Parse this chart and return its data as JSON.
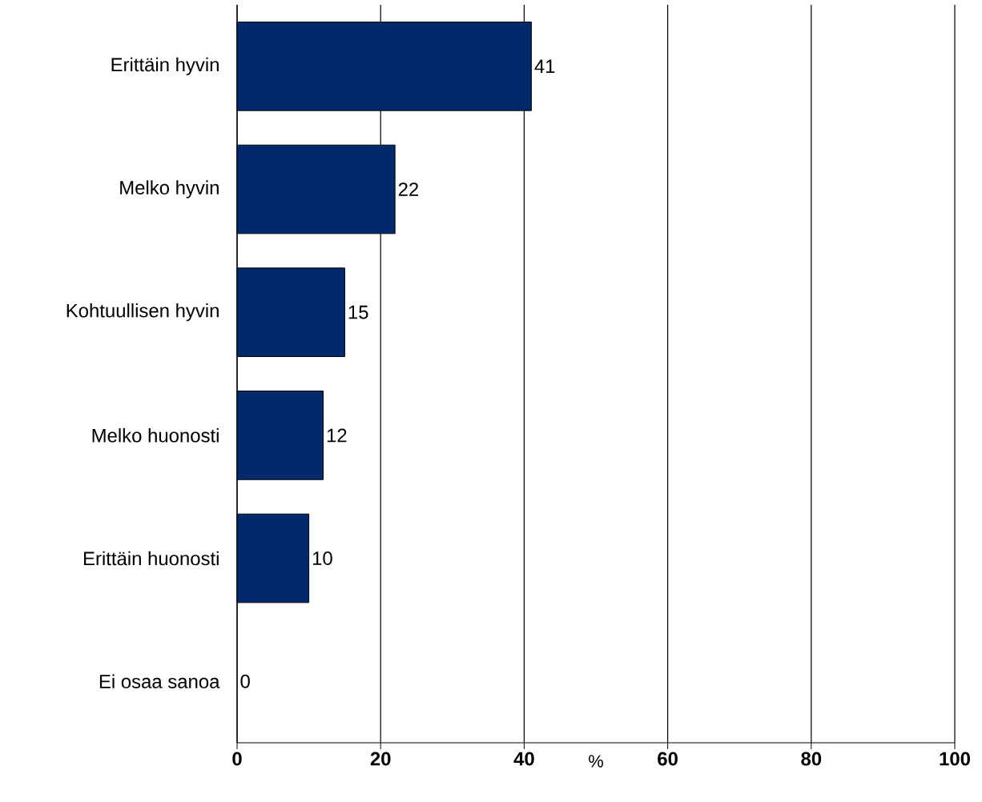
{
  "chart_data": {
    "type": "bar",
    "orientation": "horizontal",
    "xlabel": "%",
    "categories": [
      "Erittäin hyvin",
      "Melko hyvin",
      "Kohtuullisen hyvin",
      "Melko huonosti",
      "Erittäin huonosti",
      "Ei osaa sanoa"
    ],
    "values": [
      41,
      22,
      15,
      12,
      10,
      0
    ],
    "color": "#002a6c",
    "xlim": [
      0,
      100
    ],
    "xticks": [
      0,
      20,
      40,
      60,
      80,
      100
    ],
    "grid": "x",
    "data_labels": true
  }
}
